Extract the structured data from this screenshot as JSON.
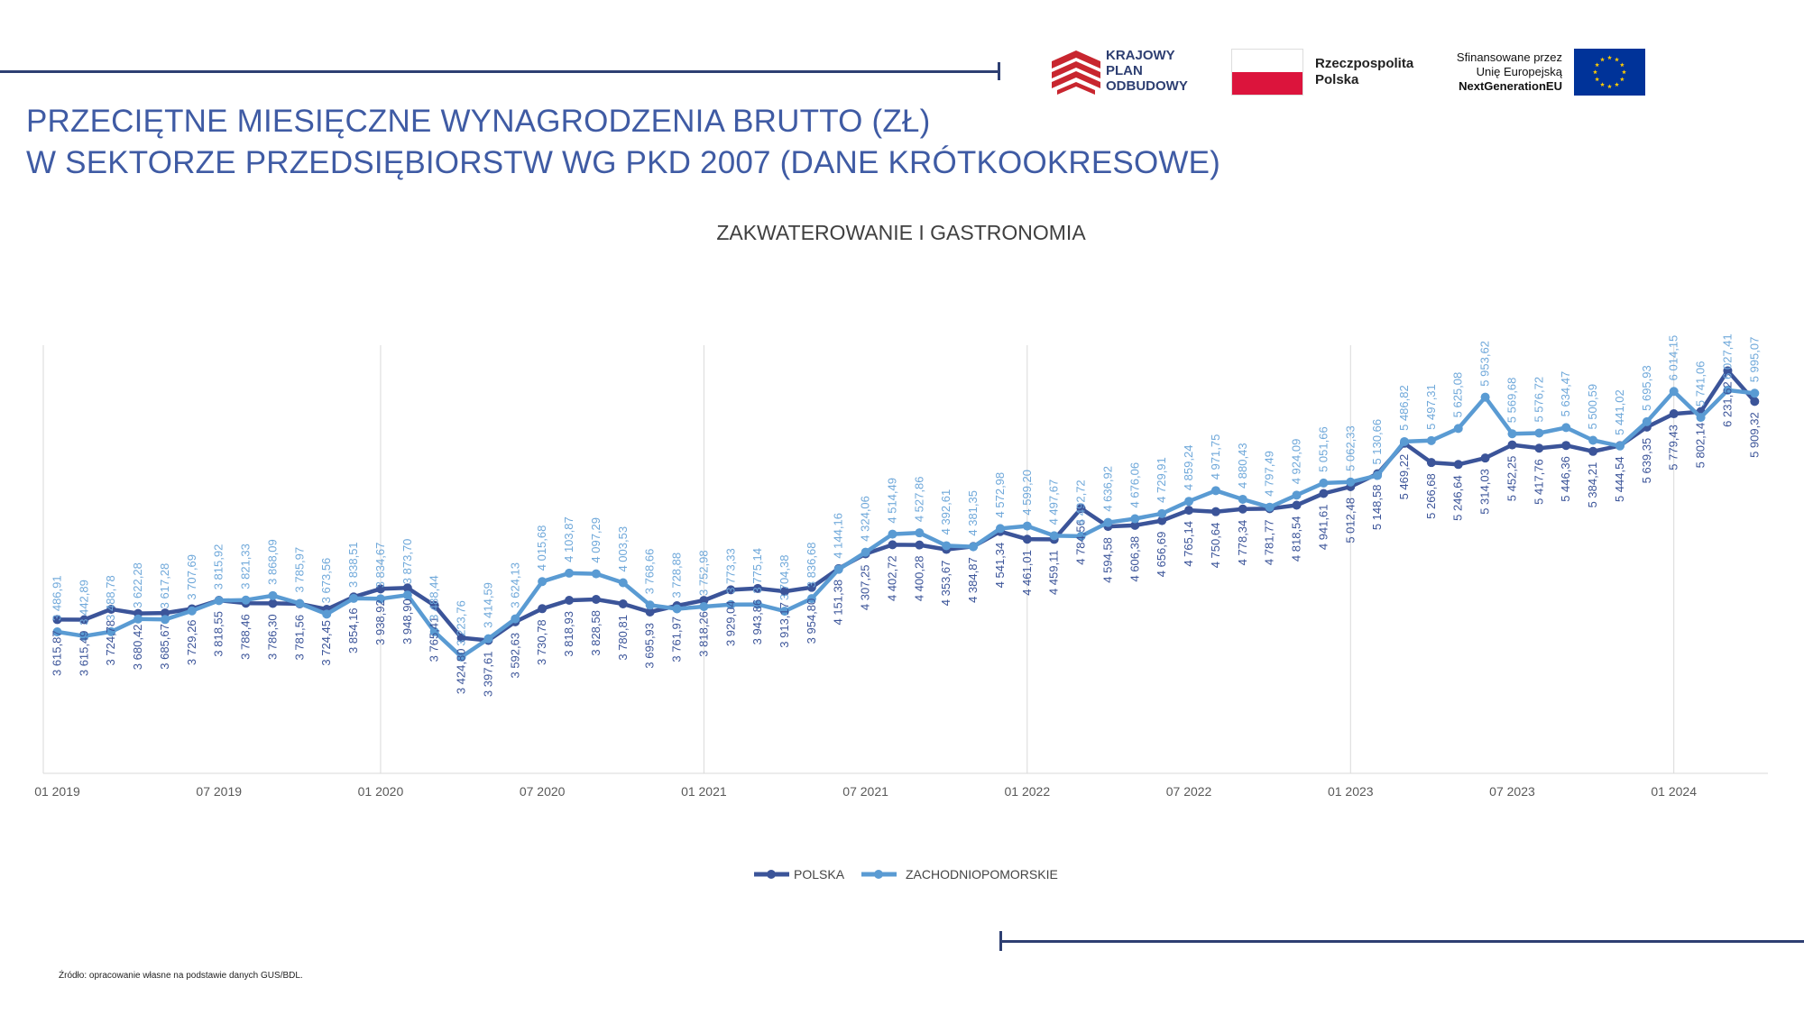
{
  "header": {
    "title_line1": "PRZECIĘTNE MIESIĘCZNE WYNAGRODZENIA BRUTTO (ZŁ)",
    "title_line2": "W SEKTORZE PRZEDSIĘBIORSTW WG PKD 2007 (DANE KRÓTKOOKRESOWE)"
  },
  "logos": {
    "kpo_line1": "KRAJOWY",
    "kpo_line2": "PLAN",
    "kpo_line3": "ODBUDOWY",
    "rp_line1": "Rzeczpospolita",
    "rp_line2": "Polska",
    "eu_line1": "Sfinansowane przez",
    "eu_line2": "Unię Europejską",
    "eu_line3": "NextGenerationEU"
  },
  "footer": {
    "source": "Źródło: opracowanie własne na podstawie danych GUS/BDL."
  },
  "colors": {
    "title": "#3f5ba4",
    "rule": "#2e3f72",
    "polska": "#3b5499",
    "zachodniopomorskie": "#5a9bd3",
    "kpo_red": "#c8262f",
    "rp_red": "#dc143c",
    "eu_blue": "#003399",
    "eu_star": "#ffcc00"
  },
  "chart_data": {
    "type": "line",
    "title": "ZAKWATEROWANIE I GASTRONOMIA",
    "xlabel": "",
    "ylabel": "",
    "ylim": [
      2000,
      6500
    ],
    "grid": "vertical lines at each January",
    "legend_position": "bottom-center",
    "tick_labels": [
      "01 2019",
      "07 2019",
      "01 2020",
      "07 2020",
      "01 2021",
      "07 2021",
      "01 2022",
      "07 2022",
      "01 2023",
      "07 2023",
      "01 2024"
    ],
    "x": [
      "01 2019",
      "02 2019",
      "03 2019",
      "04 2019",
      "05 2019",
      "06 2019",
      "07 2019",
      "08 2019",
      "09 2019",
      "10 2019",
      "11 2019",
      "12 2019",
      "01 2020",
      "02 2020",
      "03 2020",
      "04 2020",
      "05 2020",
      "06 2020",
      "07 2020",
      "08 2020",
      "09 2020",
      "10 2020",
      "11 2020",
      "12 2020",
      "01 2021",
      "02 2021",
      "03 2021",
      "04 2021",
      "05 2021",
      "06 2021",
      "07 2021",
      "08 2021",
      "09 2021",
      "10 2021",
      "11 2021",
      "12 2021",
      "01 2022",
      "02 2022",
      "03 2022",
      "04 2022",
      "05 2022",
      "06 2022",
      "07 2022",
      "08 2022",
      "09 2022",
      "10 2022",
      "11 2022",
      "12 2022",
      "01 2023",
      "02 2023",
      "03 2023",
      "04 2023",
      "05 2023",
      "06 2023",
      "07 2023",
      "08 2023",
      "09 2023",
      "10 2023",
      "11 2023",
      "12 2023",
      "01 2024",
      "02 2024",
      "03 2024",
      "04 2024"
    ],
    "series": [
      {
        "name": "POLSKA",
        "values": [
          3615.87,
          3615.49,
          3724.78,
          3680.42,
          3685.67,
          3729.26,
          3818.55,
          3788.46,
          3786.3,
          3781.56,
          3724.45,
          3854.16,
          3938.92,
          3948.9,
          3765.41,
          3424.8,
          3397.61,
          3592.63,
          3730.78,
          3818.93,
          3828.58,
          3780.81,
          3695.93,
          3761.97,
          3818.26,
          3929.04,
          3943.86,
          3913.17,
          3954.8,
          4151.38,
          4307.25,
          4402.72,
          4400.28,
          4353.67,
          4384.87,
          4541.34,
          4461.01,
          4459.11,
          4784.56,
          4594.58,
          4606.38,
          4656.69,
          4765.14,
          4750.64,
          4778.34,
          4781.77,
          4818.54,
          4941.61,
          5012.48,
          5148.58,
          5469.22,
          5266.68,
          5246.64,
          5314.03,
          5452.25,
          5417.76,
          5446.36,
          5384.21,
          5444.54,
          5639.35,
          5779.43,
          5802.14,
          6231.62,
          5909.32
        ],
        "labels": [
          "3 615,87",
          "3 615,49",
          "3 724,78",
          "3 680,42",
          "3 685,67",
          "3 729,26",
          "3 818,55",
          "3 788,46",
          "3 786,30",
          "3 781,56",
          "3 724,45",
          "3 854,16",
          "3 938,92",
          "3 948,90",
          "3 765,41",
          "3 424,80",
          "3 397,61",
          "3 592,63",
          "3 730,78",
          "3 818,93",
          "3 828,58",
          "3 780,81",
          "3 695,93",
          "3 761,97",
          "3 818,26",
          "3 929,04",
          "3 943,86",
          "3 913,17",
          "3 954,80",
          "4 151,38",
          "4 307,25",
          "4 402,72",
          "4 400,28",
          "4 353,67",
          "4 384,87",
          "4 541,34",
          "4 461,01",
          "4 459,11",
          "4 784,56",
          "4 594,58",
          "4 606,38",
          "4 656,69",
          "4 765,14",
          "4 750,64",
          "4 778,34",
          "4 781,77",
          "4 818,54",
          "4 941,61",
          "5 012,48",
          "5 148,58",
          "5 469,22",
          "5 266,68",
          "5 246,64",
          "5 314,03",
          "5 452,25",
          "5 417,76",
          "5 446,36",
          "5 384,21",
          "5 444,54",
          "5 639,35",
          "5 779,43",
          "5 802,14",
          "6 231,62",
          "5 909,32"
        ]
      },
      {
        "name": "ZACHODNIOPOMORSKIE",
        "values": [
          3486.91,
          3442.89,
          3488.78,
          3622.28,
          3617.28,
          3707.69,
          3815.92,
          3821.33,
          3868.09,
          3785.97,
          3673.56,
          3838.51,
          3834.67,
          3873.7,
          3488.44,
          3223.76,
          3414.59,
          3624.13,
          4015.68,
          4103.87,
          4097.29,
          4003.53,
          3768.66,
          3728.88,
          3752.98,
          3773.33,
          3775.14,
          3704.38,
          3836.68,
          4144.16,
          4324.06,
          4514.49,
          4527.86,
          4392.61,
          4381.35,
          4572.98,
          4599.2,
          4497.67,
          4492.72,
          4636.92,
          4676.06,
          4729.91,
          4859.24,
          4971.75,
          4880.43,
          4797.49,
          4924.09,
          5051.66,
          5062.33,
          5130.66,
          5486.82,
          5497.31,
          5625.08,
          5953.62,
          5569.68,
          5576.72,
          5634.47,
          5500.59,
          5441.02,
          5695.93,
          6014.15,
          5741.06,
          6027.41,
          5995.07
        ],
        "labels": [
          "3 486,91",
          "3 442,89",
          "3 488,78",
          "3 622,28",
          "3 617,28",
          "3 707,69",
          "3 815,92",
          "3 821,33",
          "3 868,09",
          "3 785,97",
          "3 673,56",
          "3 838,51",
          "3 834,67",
          "3 873,70",
          "3 488,44",
          "3 223,76",
          "3 414,59",
          "3 624,13",
          "4 015,68",
          "4 103,87",
          "4 097,29",
          "4 003,53",
          "3 768,66",
          "3 728,88",
          "3 752,98",
          "3 773,33",
          "3 775,14",
          "3 704,38",
          "3 836,68",
          "4 144,16",
          "4 324,06",
          "4 514,49",
          "4 527,86",
          "4 392,61",
          "4 381,35",
          "4 572,98",
          "4 599,20",
          "4 497,67",
          "4 492,72",
          "4 636,92",
          "4 676,06",
          "4 729,91",
          "4 859,24",
          "4 971,75",
          "4 880,43",
          "4 797,49",
          "4 924,09",
          "5 051,66",
          "5 062,33",
          "5 130,66",
          "5 486,82",
          "5 497,31",
          "5 625,08",
          "5 953,62",
          "5 569,68",
          "5 576,72",
          "5 634,47",
          "5 500,59",
          "5 441,02",
          "5 695,93",
          "6 014,15",
          "5 741,06",
          "6 027,41",
          "5 995,07"
        ]
      }
    ]
  }
}
